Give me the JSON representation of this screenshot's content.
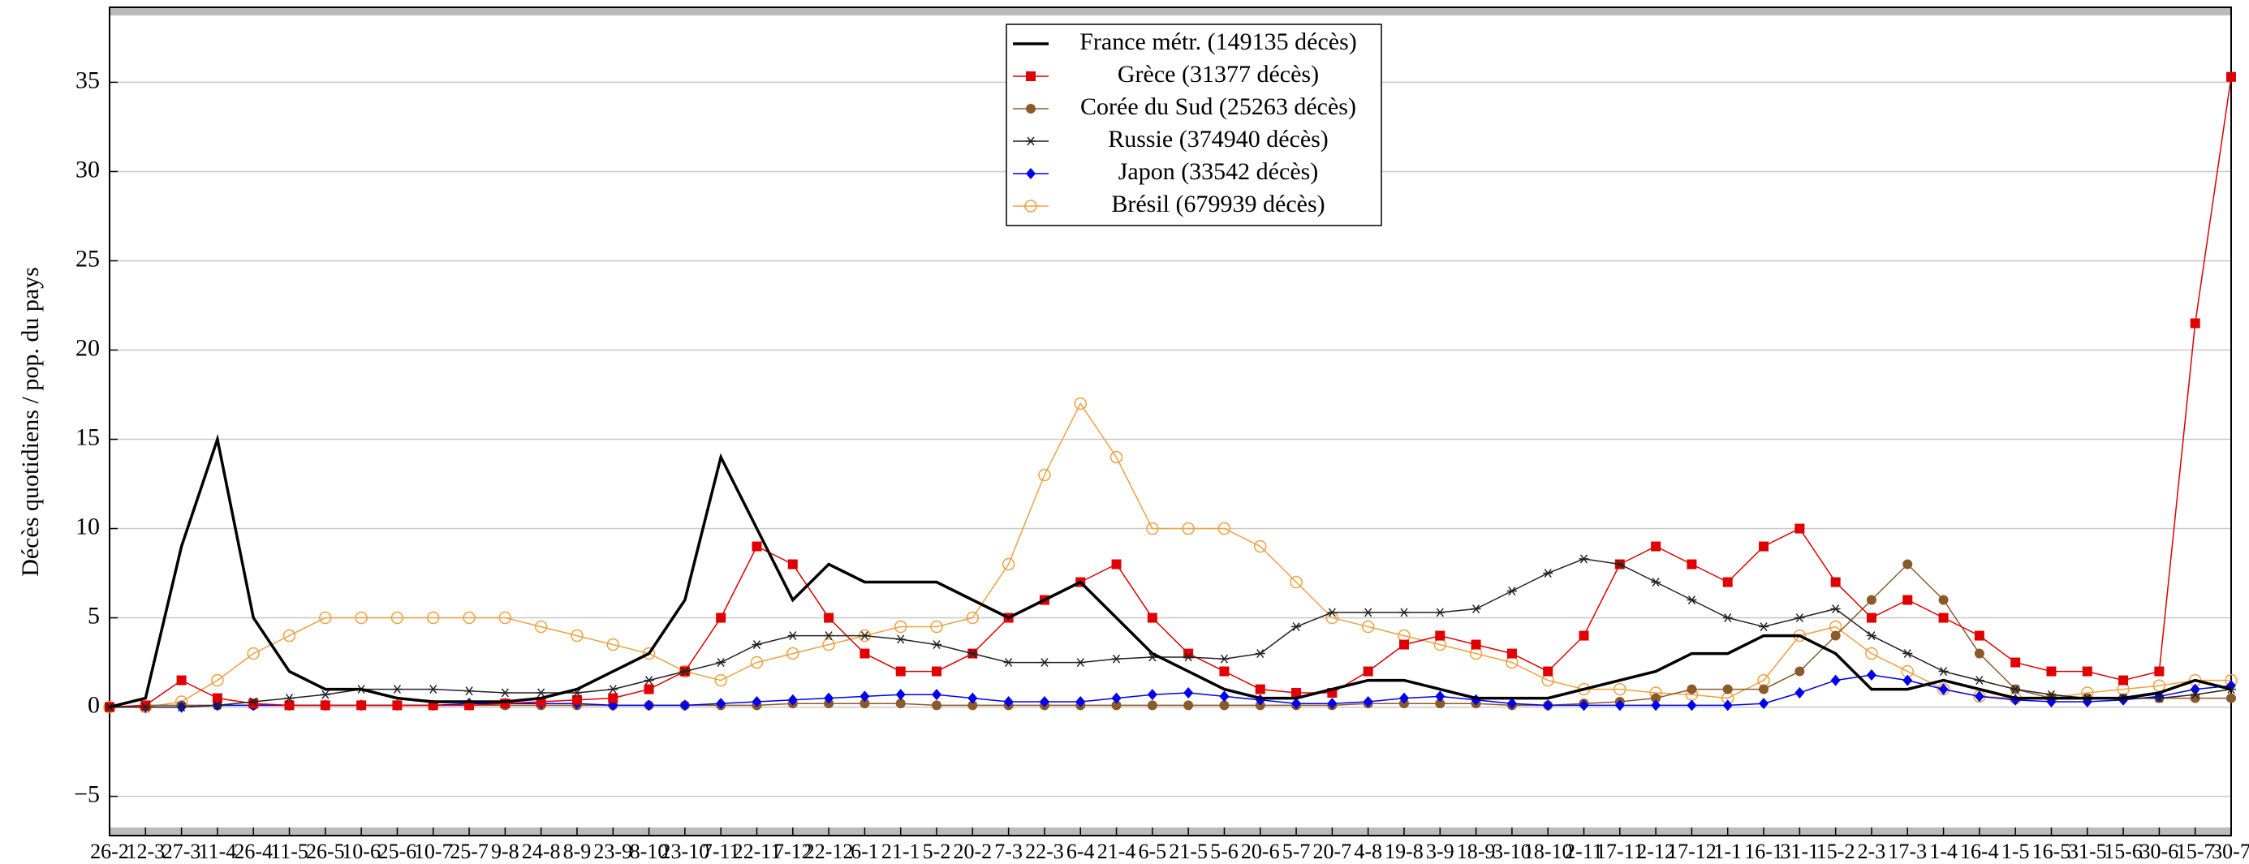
{
  "chart_data": {
    "type": "line",
    "y_label": "Décès quotidiens / pop. du pays",
    "categories": [
      "26-2",
      "12-3",
      "27-3",
      "11-4",
      "26-4",
      "11-5",
      "26-5",
      "10-6",
      "25-6",
      "10-7",
      "25-7",
      "9-8",
      "24-8",
      "8-9",
      "23-9",
      "8-10",
      "23-10",
      "7-11",
      "22-11",
      "7-12",
      "22-12",
      "6-1",
      "21-1",
      "5-2",
      "20-2",
      "7-3",
      "22-3",
      "6-4",
      "21-4",
      "6-5",
      "21-5",
      "5-6",
      "20-6",
      "5-7",
      "20-7",
      "4-8",
      "19-8",
      "3-9",
      "18-9",
      "3-10",
      "18-10",
      "2-11",
      "17-11",
      "2-12",
      "17-12",
      "1-1",
      "16-1",
      "31-1",
      "15-2",
      "2-3",
      "17-3",
      "1-4",
      "16-4",
      "1-5",
      "16-5",
      "31-5",
      "15-6",
      "30-6",
      "15-7",
      "30-7"
    ],
    "series": [
      {
        "name": "France métr. (149135 décès)",
        "color": "#000000",
        "marker": "none",
        "values": [
          0,
          0.5,
          9,
          15,
          5,
          2,
          1,
          1,
          0.5,
          0.3,
          0.3,
          0.3,
          0.5,
          1,
          2,
          3,
          6,
          14,
          10,
          6,
          8,
          7,
          7,
          7,
          6,
          5,
          6,
          7,
          5,
          3,
          2,
          1,
          0.5,
          0.5,
          1,
          1.5,
          1.5,
          1,
          0.5,
          0.5,
          0.5,
          1,
          1.5,
          2,
          3,
          3,
          4,
          4,
          3,
          1,
          1,
          1.5,
          1,
          0.5,
          0.5,
          0.5,
          0.5,
          0.8,
          1.5,
          1
        ]
      },
      {
        "name": "Grèce (31377 décès)",
        "color": "#e00000",
        "marker": "square",
        "values": [
          0,
          0.1,
          1.5,
          0.5,
          0.2,
          0.1,
          0.1,
          0.1,
          0.1,
          0.1,
          0.1,
          0.2,
          0.3,
          0.4,
          0.5,
          1,
          2,
          5,
          9,
          8,
          5,
          3,
          2,
          2,
          3,
          5,
          6,
          7,
          8,
          5,
          3,
          2,
          1,
          0.8,
          0.8,
          2,
          3.5,
          4,
          3.5,
          3,
          2,
          4,
          8,
          9,
          8,
          7,
          9,
          10,
          7,
          5,
          6,
          5,
          4,
          2.5,
          2,
          2,
          1.5,
          2,
          21.5,
          35.3
        ]
      },
      {
        "name": "Corée du Sud (25263 décès)",
        "color": "#8b5a2b",
        "marker": "circle",
        "values": [
          0,
          0.1,
          0.1,
          0.1,
          0.1,
          0.1,
          0.1,
          0.1,
          0.1,
          0.1,
          0.1,
          0.1,
          0.1,
          0.1,
          0.1,
          0.1,
          0.1,
          0.1,
          0.1,
          0.2,
          0.2,
          0.2,
          0.2,
          0.1,
          0.1,
          0.1,
          0.1,
          0.1,
          0.1,
          0.1,
          0.1,
          0.1,
          0.1,
          0.1,
          0.1,
          0.2,
          0.2,
          0.2,
          0.2,
          0.1,
          0.1,
          0.2,
          0.3,
          0.5,
          1,
          1,
          1,
          2,
          4,
          6,
          8,
          6,
          3,
          1,
          0.5,
          0.5,
          0.5,
          0.5,
          0.5,
          0.5
        ]
      },
      {
        "name": "Russie (374940 décès)",
        "color": "#222222",
        "marker": "star",
        "values": [
          0,
          0,
          0,
          0.1,
          0.3,
          0.5,
          0.7,
          1,
          1,
          1,
          0.9,
          0.8,
          0.8,
          0.8,
          1,
          1.5,
          2,
          2.5,
          3.5,
          4,
          4,
          4,
          3.8,
          3.5,
          3,
          2.5,
          2.5,
          2.5,
          2.7,
          2.8,
          2.8,
          2.7,
          3,
          4.5,
          5.3,
          5.3,
          5.3,
          5.3,
          5.5,
          6.5,
          7.5,
          8.3,
          8,
          7,
          6,
          5,
          4.5,
          5,
          5.5,
          4,
          3,
          2,
          1.5,
          1,
          0.7,
          0.5,
          0.5,
          0.5,
          0.7,
          1
        ]
      },
      {
        "name": "Japon (33542 décès)",
        "color": "#0000ee",
        "marker": "diamond",
        "values": [
          0,
          0,
          0,
          0.1,
          0.1,
          0.1,
          0.1,
          0.1,
          0.1,
          0.1,
          0.2,
          0.2,
          0.2,
          0.2,
          0.1,
          0.1,
          0.1,
          0.2,
          0.3,
          0.4,
          0.5,
          0.6,
          0.7,
          0.7,
          0.5,
          0.3,
          0.3,
          0.3,
          0.5,
          0.7,
          0.8,
          0.6,
          0.4,
          0.2,
          0.2,
          0.3,
          0.5,
          0.6,
          0.4,
          0.2,
          0.1,
          0.1,
          0.1,
          0.1,
          0.1,
          0.1,
          0.2,
          0.8,
          1.5,
          1.8,
          1.5,
          1,
          0.6,
          0.4,
          0.3,
          0.3,
          0.4,
          0.6,
          1,
          1.2
        ]
      },
      {
        "name": "Brésil (679939 décès)",
        "color": "#f0a040",
        "marker": "open-circle",
        "values": [
          0,
          0,
          0.3,
          1.5,
          3,
          4,
          5,
          5,
          5,
          5,
          5,
          5,
          4.5,
          4,
          3.5,
          3,
          2,
          1.5,
          2.5,
          3,
          3.5,
          4,
          4.5,
          4.5,
          5,
          8,
          13,
          17,
          14,
          10,
          10,
          10,
          9,
          7,
          5,
          4.5,
          4,
          3.5,
          3,
          2.5,
          1.5,
          1,
          1,
          0.8,
          0.7,
          0.5,
          1.5,
          4,
          4.5,
          3,
          2,
          1,
          0.6,
          0.5,
          0.5,
          0.8,
          1,
          1.2,
          1.5,
          1.5
        ]
      }
    ],
    "ylim": [
      -7.2,
      39.2
    ],
    "yticks": [
      {
        "value": -5,
        "label": "−5"
      },
      0,
      5,
      10,
      15,
      20,
      25,
      30,
      35
    ],
    "grid": true,
    "legend": "top-center"
  }
}
